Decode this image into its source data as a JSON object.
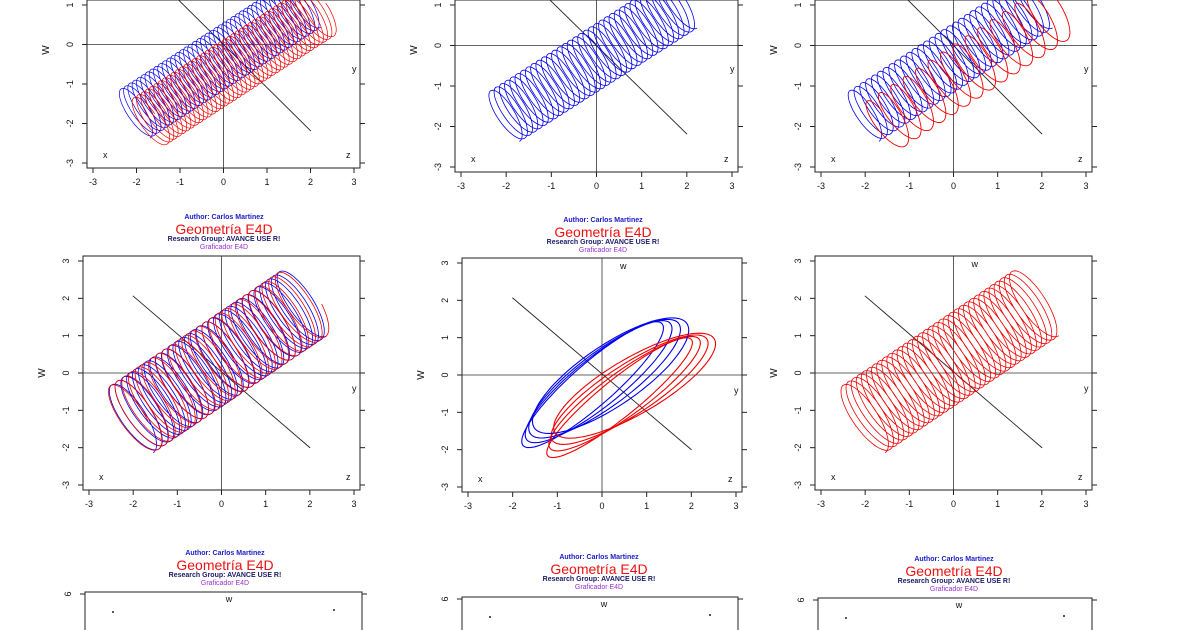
{
  "header": {
    "author": "Author: Carlos Martinez",
    "title": "Geometría E4D",
    "group": "Research Group: AVANCE USE R!",
    "subtitle": "Graficador E4D"
  },
  "labels": {
    "w": "W",
    "x": "x",
    "y": "y",
    "z": "z",
    "w_axis": "w"
  },
  "colors": {
    "blue": "#0000ee",
    "red": "#ee0000"
  },
  "chart_data": [
    {
      "type": "line",
      "row": 1,
      "col": 1,
      "variant": "cylinder-blue-red",
      "xlim": [
        -3,
        3
      ],
      "ylim": [
        -3,
        1
      ],
      "xticks": [
        -3,
        -2,
        -1,
        0,
        1,
        2,
        3
      ],
      "yticks": [
        -3,
        -2,
        -1,
        0,
        1
      ],
      "ylabel": "W",
      "series": [
        {
          "color": "blue"
        },
        {
          "color": "red"
        }
      ]
    },
    {
      "type": "line",
      "row": 1,
      "col": 2,
      "variant": "cylinder-blue",
      "xlim": [
        -3,
        3
      ],
      "ylim": [
        -3,
        1
      ],
      "xticks": [
        -3,
        -2,
        -1,
        0,
        1,
        2,
        3
      ],
      "yticks": [
        -3,
        -2,
        -1,
        0,
        1
      ],
      "ylabel": "W",
      "series": [
        {
          "color": "blue"
        }
      ]
    },
    {
      "type": "line",
      "row": 1,
      "col": 3,
      "variant": "cylinder-blue-red-sparse",
      "xlim": [
        -3,
        3
      ],
      "ylim": [
        -3,
        1
      ],
      "xticks": [
        -3,
        -2,
        -1,
        0,
        1,
        2,
        3
      ],
      "yticks": [
        -3,
        -2,
        -1,
        0,
        1
      ],
      "ylabel": "W",
      "series": [
        {
          "color": "blue"
        },
        {
          "color": "red"
        }
      ]
    },
    {
      "type": "line",
      "row": 2,
      "col": 1,
      "variant": "cylinder-mixed",
      "xlim": [
        -3,
        3
      ],
      "ylim": [
        -3,
        3
      ],
      "xticks": [
        -3,
        -2,
        -1,
        0,
        1,
        2,
        3
      ],
      "yticks": [
        -3,
        -2,
        -1,
        0,
        1,
        2,
        3
      ],
      "ylabel": "W",
      "series": [
        {
          "color": "blue"
        },
        {
          "color": "red"
        }
      ]
    },
    {
      "type": "line",
      "row": 2,
      "col": 2,
      "variant": "ellipses",
      "xlim": [
        -3,
        3
      ],
      "ylim": [
        -3,
        3
      ],
      "xticks": [
        -3,
        -2,
        -1,
        0,
        1,
        2,
        3
      ],
      "yticks": [
        -3,
        -2,
        -1,
        0,
        1,
        2,
        3
      ],
      "ylabel": "W",
      "series": [
        {
          "color": "blue"
        },
        {
          "color": "red"
        }
      ]
    },
    {
      "type": "line",
      "row": 2,
      "col": 3,
      "variant": "cylinder-red",
      "xlim": [
        -3,
        3
      ],
      "ylim": [
        -3,
        3
      ],
      "xticks": [
        -3,
        -2,
        -1,
        0,
        1,
        2,
        3
      ],
      "yticks": [
        -3,
        -2,
        -1,
        0,
        1,
        2,
        3
      ],
      "ylabel": "W",
      "series": [
        {
          "color": "red"
        }
      ]
    },
    {
      "type": "scatter",
      "row": 3,
      "col": 1,
      "variant": "partial",
      "ylim": [
        5,
        6
      ],
      "yticks": [
        6
      ],
      "ylabel": "",
      "series": []
    },
    {
      "type": "scatter",
      "row": 3,
      "col": 2,
      "variant": "partial",
      "ylim": [
        5,
        6
      ],
      "yticks": [
        6
      ],
      "ylabel": "",
      "series": []
    },
    {
      "type": "scatter",
      "row": 3,
      "col": 3,
      "variant": "partial",
      "ylim": [
        5,
        6
      ],
      "yticks": [
        6
      ],
      "ylabel": "",
      "series": []
    }
  ]
}
